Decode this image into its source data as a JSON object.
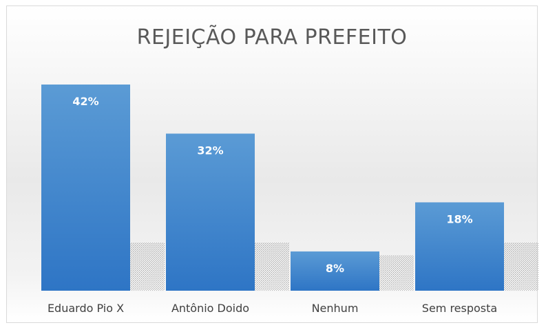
{
  "chart_data": {
    "type": "bar",
    "title": "REJEIÇÃO PARA PREFEITO",
    "categories": [
      "Eduardo Pio X",
      "Antônio Doido",
      "Nenhum",
      "Sem resposta"
    ],
    "values": [
      42,
      32,
      8,
      18
    ],
    "data_labels": [
      "42%",
      "32%",
      "8%",
      "18%"
    ],
    "unit": "%",
    "ylim": [
      0,
      42
    ],
    "grid": false,
    "legend": "none",
    "bar_color_top": "#5b9bd5",
    "bar_color_bottom": "#2e75c5"
  }
}
